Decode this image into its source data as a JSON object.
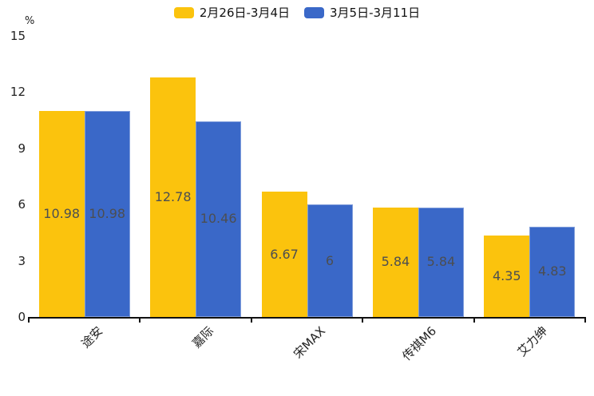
{
  "chart_data": {
    "type": "bar",
    "title": "",
    "unit_label": "%",
    "categories": [
      "途安",
      "嘉际",
      "宋MAX",
      "传祺M6",
      "艾力绅"
    ],
    "series": [
      {
        "name": "2月26日-3月4日",
        "color": "#FBC30D",
        "values": [
          10.98,
          12.78,
          6.67,
          5.84,
          4.35
        ],
        "value_labels": [
          "10.98",
          "12.78",
          "6.67",
          "5.84",
          "4.35"
        ]
      },
      {
        "name": "3月5日-3月11日",
        "color": "#3A68C8",
        "values": [
          10.98,
          10.46,
          6,
          5.84,
          4.83
        ],
        "value_labels": [
          "10.98",
          "10.46",
          "6",
          "5.84",
          "4.83"
        ]
      }
    ],
    "ylim": [
      0,
      15
    ],
    "yticks": [
      0,
      3,
      6,
      9,
      12,
      15
    ],
    "grid": false,
    "legend_position": "top",
    "value_label_color": "#4c4e51",
    "axis_color": "#111111"
  }
}
